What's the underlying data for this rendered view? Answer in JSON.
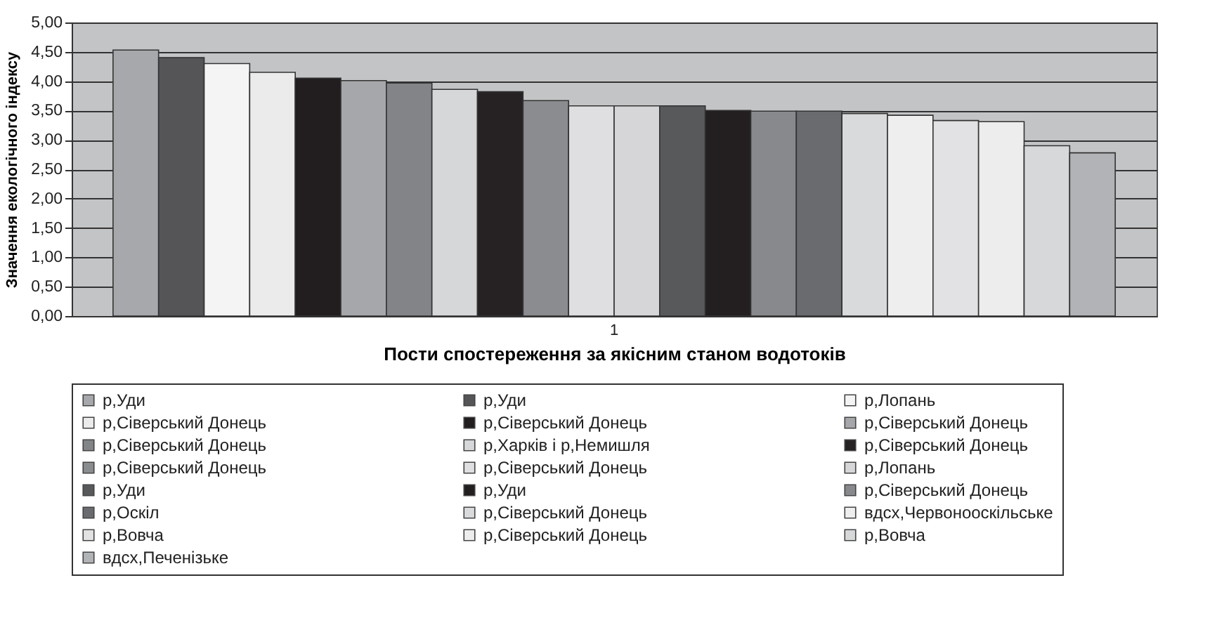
{
  "chart_data": {
    "type": "bar",
    "xlabel": "Пости спостереження за якісним станом водотоків",
    "ylabel": "Значення екологічного індексу",
    "categories": [
      "1"
    ],
    "series": [
      {
        "name": "р,Уди",
        "color": "#a7a8ac",
        "values": [
          4.53
        ]
      },
      {
        "name": "р,Уди",
        "color": "#555558",
        "values": [
          4.4
        ]
      },
      {
        "name": "р,Лопань",
        "color": "#f4f4f4",
        "values": [
          4.3
        ]
      },
      {
        "name": "р,Сіверський Донець",
        "color": "#ebebeb",
        "values": [
          4.15
        ]
      },
      {
        "name": "р,Сіверський Донець",
        "color": "#221e1f",
        "values": [
          4.05
        ]
      },
      {
        "name": "р,Сіверський Донець",
        "color": "#a6a7ab",
        "values": [
          4.01
        ]
      },
      {
        "name": "р,Сіверський Донець",
        "color": "#838487",
        "values": [
          3.97
        ]
      },
      {
        "name": "р,Харків і р,Немишля",
        "color": "#d6d7d9",
        "values": [
          3.86
        ]
      },
      {
        "name": "р,Сіверський Донець",
        "color": "#262223",
        "values": [
          3.82
        ]
      },
      {
        "name": "р,Сіверський Донець",
        "color": "#8b8c8f",
        "values": [
          3.67
        ]
      },
      {
        "name": "р,Сіверський Донець",
        "color": "#dfdfe1",
        "values": [
          3.58
        ]
      },
      {
        "name": "р,Лопань",
        "color": "#d6d6d8",
        "values": [
          3.58
        ]
      },
      {
        "name": "р,Уди",
        "color": "#58595b",
        "values": [
          3.58
        ]
      },
      {
        "name": "р,Уди",
        "color": "#231f20",
        "values": [
          3.5
        ]
      },
      {
        "name": "р,Сіверський Донець",
        "color": "#88898c",
        "values": [
          3.49
        ]
      },
      {
        "name": "р,Оскіл",
        "color": "#6a6b6e",
        "values": [
          3.49
        ]
      },
      {
        "name": "р,Сіверський Донець",
        "color": "#d9dadc",
        "values": [
          3.45
        ]
      },
      {
        "name": "вдсх,Червонооскільське",
        "color": "#eeeeee",
        "values": [
          3.42
        ]
      },
      {
        "name": "р,Вовча",
        "color": "#e2e2e4",
        "values": [
          3.33
        ]
      },
      {
        "name": "р,Сіверський Донець",
        "color": "#ededed",
        "values": [
          3.31
        ]
      },
      {
        "name": "р,Вовча",
        "color": "#d7d8da",
        "values": [
          2.9
        ]
      },
      {
        "name": "вдсх,Печенізьке",
        "color": "#b2b3b6",
        "values": [
          2.78
        ]
      }
    ],
    "ylim": [
      0,
      5
    ],
    "yticks": [
      {
        "value": 0,
        "label": "0,00"
      },
      {
        "value": 0.5,
        "label": "0,50"
      },
      {
        "value": 1,
        "label": "1,00"
      },
      {
        "value": 1.5,
        "label": "1,50"
      },
      {
        "value": 2,
        "label": "2,00"
      },
      {
        "value": 2.5,
        "label": "2,50"
      },
      {
        "value": 3,
        "label": "3,00"
      },
      {
        "value": 3.5,
        "label": "3,50"
      },
      {
        "value": 4,
        "label": "4,00"
      },
      {
        "value": 4.5,
        "label": "4,50"
      },
      {
        "value": 5,
        "label": "5,00"
      }
    ],
    "grid": "y",
    "legend": "bottom"
  }
}
